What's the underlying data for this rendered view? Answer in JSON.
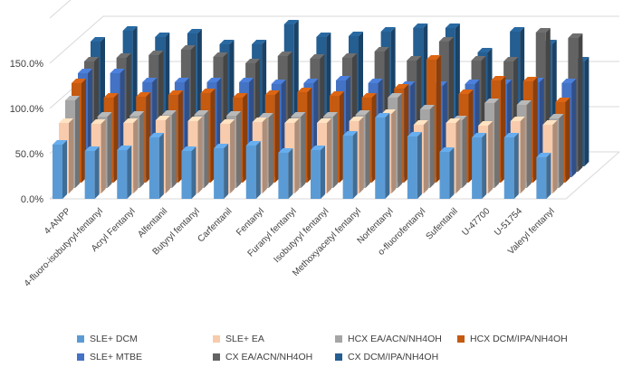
{
  "chart_data": {
    "type": "bar",
    "style": "3d-clustered-column",
    "title": "",
    "xlabel": "",
    "ylabel": "",
    "ylim": [
      0,
      2.0
    ],
    "yticks": [
      "0.0%",
      "50.0%",
      "100.0%",
      "150.0%"
    ],
    "grid": true,
    "legend_position": "bottom",
    "categories": [
      "4-ANPP",
      "4-fluoro-isobutyryl-fentanyl",
      "Acryl Fentanyl",
      "Alfentanil",
      "Butyryl fentanyl",
      "Carfentanil",
      "Fentanyl",
      "Furanyl fentanyl",
      "Isobutyryl fentanyl",
      "Methoxyacetyl fentanyl",
      "Norfentanyl",
      "o-fluorofentanyl",
      "Sufentanil",
      "U-47700",
      "U-51754",
      "Valeryl fentanyl"
    ],
    "series": [
      {
        "name": "SLE+ DCM",
        "color": "#5b9bd5",
        "values": [
          0.6,
          0.53,
          0.54,
          0.68,
          0.53,
          0.56,
          0.59,
          0.51,
          0.54,
          0.7,
          0.9,
          0.69,
          0.52,
          0.68,
          0.68,
          0.46
        ]
      },
      {
        "name": "SLE+ EA",
        "color": "#f8cbad",
        "values": [
          0.78,
          0.77,
          0.78,
          0.81,
          0.8,
          0.77,
          0.79,
          0.78,
          0.78,
          0.8,
          0.88,
          0.76,
          0.78,
          0.75,
          0.8,
          0.76
        ]
      },
      {
        "name": "HCX EA/ACN/NH4OH",
        "color": "#a5a5a5",
        "values": [
          0.97,
          0.79,
          0.8,
          0.81,
          0.81,
          0.8,
          0.78,
          0.79,
          0.79,
          0.81,
          1.0,
          0.87,
          0.75,
          0.94,
          0.92,
          0.77
        ]
      },
      {
        "name": "HCX DCM/IPA/NH4OH",
        "color": "#c55a11",
        "values": [
          1.1,
          0.94,
          0.95,
          0.97,
          0.99,
          0.94,
          0.97,
          1.0,
          0.96,
          0.94,
          1.04,
          1.36,
          0.98,
          1.13,
          1.12,
          0.89
        ]
      },
      {
        "name": "SLE+ MTBE",
        "color": "#4472c4",
        "values": [
          1.15,
          1.15,
          1.05,
          1.05,
          1.05,
          1.05,
          1.03,
          1.04,
          1.07,
          1.04,
          1.01,
          1.01,
          1.03,
          1.03,
          1.05,
          1.04
        ]
      },
      {
        "name": "CX EA/ACN/NH4OH",
        "color": "#636363",
        "values": [
          1.22,
          1.26,
          1.29,
          1.35,
          1.27,
          1.2,
          1.28,
          1.25,
          1.26,
          1.33,
          1.23,
          1.44,
          1.23,
          1.22,
          1.54,
          1.48
        ]
      },
      {
        "name": "CX DCM/IPA/NH4OH",
        "color": "#255e91",
        "values": [
          1.38,
          1.5,
          1.43,
          1.47,
          1.35,
          1.35,
          1.57,
          1.43,
          1.44,
          1.49,
          1.53,
          1.53,
          1.26,
          1.49,
          1.35,
          1.16
        ]
      }
    ]
  }
}
